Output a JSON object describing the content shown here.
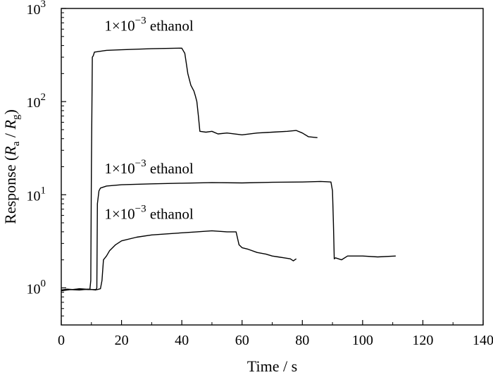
{
  "chart_data": {
    "type": "line",
    "title": "",
    "xlabel": "Time / s",
    "ylabel": "Response (R_a / R_g)",
    "ylabel_parts": {
      "pre": "Response (",
      "R1": "R",
      "sub1": "a",
      "mid": " / ",
      "R2": "R",
      "sub2": "g",
      "post": ")"
    },
    "xlim": [
      0,
      140
    ],
    "ylim": [
      0.4,
      1000
    ],
    "yscale": "log",
    "grid": false,
    "legend": "none",
    "x_ticks": [
      {
        "value": 0,
        "label": "0"
      },
      {
        "value": 20,
        "label": "20"
      },
      {
        "value": 40,
        "label": "40"
      },
      {
        "value": 60,
        "label": "60"
      },
      {
        "value": 80,
        "label": "80"
      },
      {
        "value": 100,
        "label": "100"
      },
      {
        "value": 120,
        "label": "120"
      },
      {
        "value": 140,
        "label": "140"
      }
    ],
    "y_ticks": [
      {
        "value": 1,
        "base": "10",
        "exp": "0"
      },
      {
        "value": 10,
        "base": "10",
        "exp": "1"
      },
      {
        "value": 100,
        "base": "10",
        "exp": "2"
      },
      {
        "value": 1000,
        "base": "10",
        "exp": "3"
      }
    ],
    "annotations": [
      {
        "base": "1×10",
        "exp": "−3",
        "rest": " ethanol",
        "x": 12,
        "y": 580
      },
      {
        "base": "1×10",
        "exp": "−3",
        "rest": " ethanol",
        "x": 12,
        "y": 17
      },
      {
        "base": "1×10",
        "exp": "−3",
        "rest": " ethanol",
        "x": 12,
        "y": 5.5
      }
    ],
    "series": [
      {
        "x": [
          0,
          2,
          4,
          6,
          8,
          9.5,
          9.8,
          10,
          10.3,
          10.6,
          11,
          15,
          20,
          30,
          40,
          41,
          42,
          43,
          44,
          44.5,
          45,
          45.5,
          46,
          48,
          50,
          52,
          55,
          60,
          65,
          70,
          75,
          78,
          80,
          82,
          85
        ],
        "y": [
          0.95,
          0.97,
          0.96,
          0.98,
          0.97,
          0.96,
          1.2,
          20,
          300,
          310,
          340,
          355,
          360,
          370,
          375,
          330,
          200,
          150,
          130,
          115,
          100,
          70,
          48,
          47,
          48,
          45,
          46,
          44,
          46,
          47,
          48,
          49,
          46,
          42,
          41
        ]
      },
      {
        "x": [
          0,
          3,
          6,
          9,
          11.5,
          11.8,
          12,
          12.5,
          13,
          15,
          20,
          30,
          40,
          50,
          60,
          70,
          80,
          86,
          88,
          89.5,
          90,
          90.3,
          90.6,
          91,
          93,
          95,
          100,
          105,
          111
        ],
        "y": [
          0.93,
          0.96,
          0.95,
          0.97,
          0.95,
          1.0,
          8,
          11,
          11.8,
          12.4,
          12.8,
          13.1,
          13.3,
          13.5,
          13.4,
          13.6,
          13.7,
          13.9,
          13.8,
          13.7,
          11,
          5,
          2.05,
          2.1,
          2.0,
          2.2,
          2.2,
          2.15,
          2.2
        ]
      },
      {
        "x": [
          0,
          3,
          6,
          9,
          12,
          13,
          13.5,
          14,
          15,
          16,
          18,
          20,
          25,
          30,
          35,
          40,
          45,
          50,
          55,
          58,
          59,
          60,
          62,
          65,
          68,
          70,
          72,
          74,
          76,
          77,
          77.5,
          78
        ],
        "y": [
          0.95,
          0.96,
          0.97,
          0.96,
          0.96,
          0.98,
          1.2,
          2.0,
          2.2,
          2.5,
          2.9,
          3.2,
          3.5,
          3.7,
          3.8,
          3.9,
          4.0,
          4.1,
          4.0,
          4.0,
          2.9,
          2.7,
          2.6,
          2.4,
          2.3,
          2.2,
          2.15,
          2.1,
          2.05,
          1.95,
          2.0,
          2.05
        ]
      }
    ]
  }
}
